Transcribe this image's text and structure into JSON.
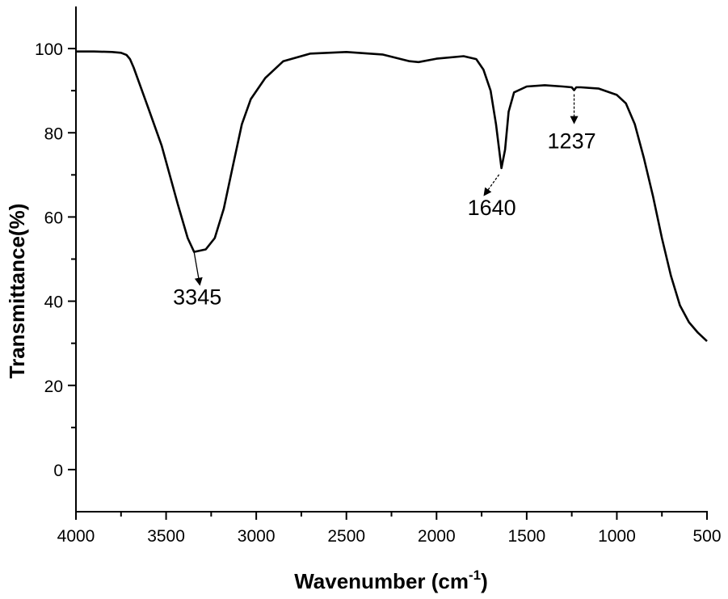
{
  "chart_data": {
    "type": "line",
    "title": "",
    "xlabel": "Wavenumber (cm",
    "xlabel_superscript": "-1",
    "xlabel_suffix": ")",
    "ylabel": "Transmittance(%)",
    "xlim": [
      4000,
      500
    ],
    "ylim": [
      -10,
      110
    ],
    "x_reversed": true,
    "grid": false,
    "line_color": "#000000",
    "x_ticks": [
      4000,
      3500,
      3000,
      2500,
      2000,
      1500,
      1000,
      500
    ],
    "y_ticks": [
      0,
      20,
      40,
      60,
      80,
      100
    ],
    "series": [
      {
        "x": [
          4000,
          3900,
          3800,
          3750,
          3720,
          3700,
          3680,
          3600,
          3525,
          3435,
          3380,
          3345,
          3280,
          3230,
          3180,
          3130,
          3080,
          3030,
          2950,
          2900,
          2850,
          2700,
          2500,
          2300,
          2150,
          2100,
          2000,
          1850,
          1780,
          1740,
          1700,
          1670,
          1640,
          1620,
          1600,
          1570,
          1500,
          1400,
          1300,
          1250,
          1237,
          1225,
          1200,
          1100,
          1000,
          950,
          900,
          850,
          800,
          750,
          700,
          650,
          600,
          550,
          500
        ],
        "y": [
          99.3,
          99.3,
          99.2,
          99,
          98.5,
          97.5,
          95.5,
          86,
          77,
          63,
          55,
          51.7,
          52.3,
          55,
          62,
          72,
          82,
          88,
          93,
          95,
          97,
          98.8,
          99.2,
          98.6,
          97,
          96.8,
          97.6,
          98.2,
          97.5,
          95,
          90,
          82,
          71.6,
          76,
          85,
          89.6,
          91,
          91.3,
          91,
          90.8,
          90.1,
          90.8,
          90.8,
          90.5,
          89,
          87,
          82,
          74,
          65,
          55,
          46,
          39,
          35,
          32.5,
          30.5
        ]
      }
    ],
    "annotations": [
      {
        "label": "3345",
        "x": 3345,
        "y": 51.7
      },
      {
        "label": "1640",
        "x": 1640,
        "y": 71.6
      },
      {
        "label": "1237",
        "x": 1237,
        "y": 90.1
      }
    ]
  }
}
